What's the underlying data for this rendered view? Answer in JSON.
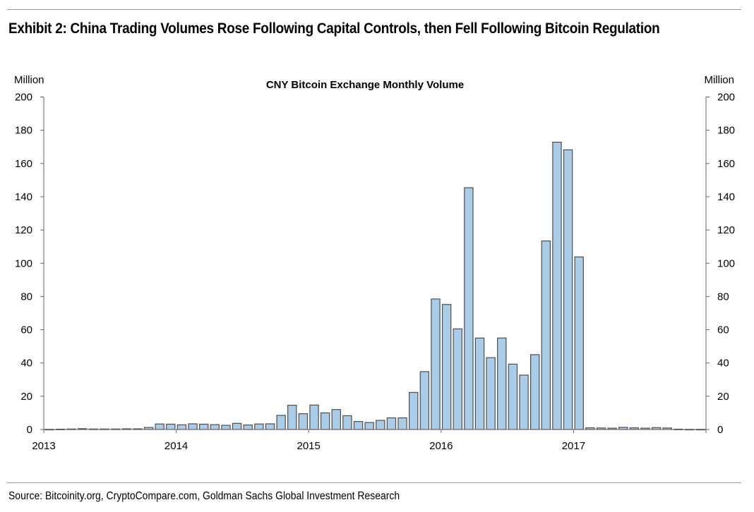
{
  "header": {
    "title": "Exhibit 2: China Trading Volumes Rose Following Capital Controls, then Fell Following Bitcoin Regulation"
  },
  "footer": {
    "source": "Source: Bitcoinity.org, CryptoCompare.com, Goldman Sachs Global Investment Research"
  },
  "colors": {
    "bar_fill": "#a9cde9",
    "bar_stroke": "#4d4d4d"
  },
  "chart_data": {
    "type": "bar",
    "title": "CNY Bitcoin Exchange Monthly Volume",
    "ylabel_left": "Million",
    "ylabel_right": "Million",
    "ylim": [
      0,
      200
    ],
    "yticks": [
      0,
      20,
      40,
      60,
      80,
      100,
      120,
      140,
      160,
      180,
      200
    ],
    "xticks": [
      "2013",
      "2014",
      "2015",
      "2016",
      "2017"
    ],
    "grid": false,
    "legend": "none",
    "series": [
      {
        "categories": [
          "2013-01",
          "2013-02",
          "2013-03",
          "2013-04",
          "2013-05",
          "2013-06",
          "2013-07",
          "2013-08",
          "2013-09",
          "2013-10",
          "2013-11",
          "2013-12",
          "2014-01",
          "2014-02",
          "2014-03",
          "2014-04",
          "2014-05",
          "2014-06",
          "2014-07",
          "2014-08",
          "2014-09",
          "2014-10",
          "2014-11",
          "2014-12",
          "2015-01",
          "2015-02",
          "2015-03",
          "2015-04",
          "2015-05",
          "2015-06",
          "2015-07",
          "2015-08",
          "2015-09",
          "2015-10",
          "2015-11",
          "2015-12",
          "2016-01",
          "2016-02",
          "2016-03",
          "2016-04",
          "2016-05",
          "2016-06",
          "2016-07",
          "2016-08",
          "2016-09",
          "2016-10",
          "2016-11",
          "2016-12",
          "2017-01",
          "2017-02",
          "2017-03",
          "2017-04",
          "2017-05",
          "2017-06",
          "2017-07",
          "2017-08",
          "2017-09",
          "2017-10",
          "2017-11",
          "2017-12"
        ],
        "values": [
          0.1,
          0.2,
          0.3,
          0.5,
          0.3,
          0.3,
          0.3,
          0.4,
          0.4,
          1.2,
          3.3,
          3.2,
          2.8,
          3.4,
          3.2,
          2.9,
          2.5,
          3.7,
          2.7,
          3.3,
          3.4,
          8.5,
          14.6,
          9.5,
          14.7,
          10.0,
          12.0,
          8.3,
          4.8,
          4.2,
          5.5,
          7.0,
          7.0,
          22.3,
          34.8,
          78.5,
          75.2,
          60.5,
          145.4,
          55.0,
          43.2,
          55.0,
          39.3,
          32.7,
          45.0,
          113.4,
          172.8,
          168.2,
          103.8,
          1.0,
          0.9,
          0.8,
          1.3,
          1.0,
          0.8,
          1.1,
          0.9,
          0.2,
          0.1,
          0.1
        ]
      }
    ]
  }
}
